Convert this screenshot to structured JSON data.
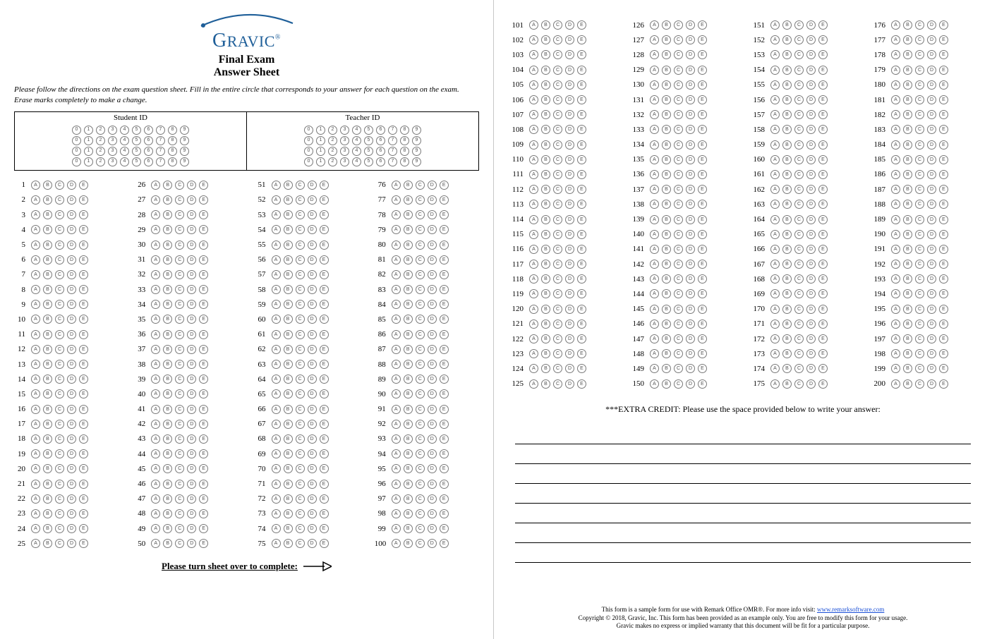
{
  "logo": {
    "brand": "GRAVIC",
    "reg": "®"
  },
  "titles": {
    "line1": "Final Exam",
    "line2": "Answer Sheet"
  },
  "instructions": "Please follow the directions on the exam question sheet. Fill in the entire circle that corresponds to your answer for each question on the exam. Erase marks completely to make a change.",
  "id_section": {
    "student_label": "Student ID",
    "teacher_label": "Teacher ID",
    "digits": [
      "0",
      "1",
      "2",
      "3",
      "4",
      "5",
      "6",
      "7",
      "8",
      "9"
    ],
    "rows": 4,
    "cols": 10
  },
  "choices": [
    "A",
    "B",
    "C",
    "D",
    "E"
  ],
  "page1": {
    "columns": [
      {
        "start": 1,
        "end": 25
      },
      {
        "start": 26,
        "end": 50
      },
      {
        "start": 51,
        "end": 75
      },
      {
        "start": 76,
        "end": 100
      }
    ],
    "turn_over": "Please turn sheet over to complete:"
  },
  "page2": {
    "columns": [
      {
        "start": 101,
        "end": 125
      },
      {
        "start": 126,
        "end": 150
      },
      {
        "start": 151,
        "end": 175
      },
      {
        "start": 176,
        "end": 200
      }
    ],
    "extra_credit": "***EXTRA CREDIT: Please use the space provided below to write your answer:",
    "blank_lines": 7
  },
  "footer": {
    "line1_a": "This form is a sample form for use with Remark Office OMR®. For more info visit: ",
    "line1_link": "www.remarksoftware.com",
    "line2": "Copyright © 2018, Gravic, Inc. This form has been provided as an example only. You are free to modify this form for your usage.",
    "line3": "Gravic makes no express or implied warranty that this document will be fit for a particular purpose."
  },
  "colors": {
    "brand": "#1f5f99",
    "bubble_border": "#7a7a7a"
  }
}
